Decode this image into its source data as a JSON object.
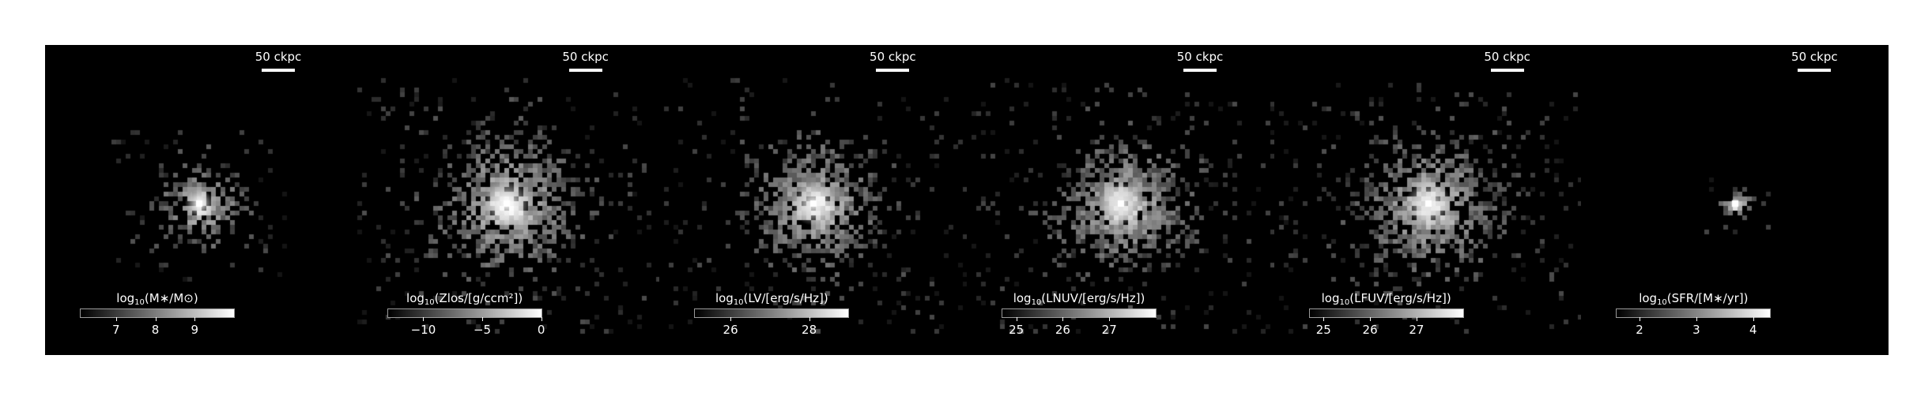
{
  "colors": {
    "figure_background": "#ffffff",
    "image_background": "#000000",
    "foreground": "#ffffff"
  },
  "panels": [
    {
      "id": "stellar-mass",
      "scalebar": "50 ckpc",
      "colorbar": {
        "label_pre": "log",
        "label_sub": "10",
        "label_post": "(M∗/M⊙)",
        "range": [
          6.1,
          10.0
        ],
        "ticks": [
          {
            "value": 7,
            "label": "7"
          },
          {
            "value": 8,
            "label": "8"
          },
          {
            "value": 9,
            "label": "9"
          }
        ]
      },
      "appearance": {
        "spread": 26,
        "extent": 110,
        "pixels": 260,
        "core": 1.0
      }
    },
    {
      "id": "metallicity",
      "scalebar": "50 ckpc",
      "colorbar": {
        "label_pre": "log",
        "label_sub": "10",
        "label_post": "(Zlos/[g/ccm²])",
        "range": [
          -13.0,
          0.0
        ],
        "ticks": [
          {
            "value": -10,
            "label": "−10"
          },
          {
            "value": -5,
            "label": "−5"
          },
          {
            "value": 0,
            "label": "0"
          }
        ]
      },
      "appearance": {
        "spread": 44,
        "extent": 190,
        "pixels": 900,
        "core": 1.0
      }
    },
    {
      "id": "v-band",
      "scalebar": "50 ckpc",
      "colorbar": {
        "label_pre": "log",
        "label_sub": "10",
        "label_post": "(LV/[erg/s/Hz])",
        "range": [
          25.1,
          29.0
        ],
        "ticks": [
          {
            "value": 26,
            "label": "26"
          },
          {
            "value": 28,
            "label": "28"
          }
        ]
      },
      "appearance": {
        "spread": 40,
        "extent": 190,
        "pixels": 820,
        "core": 0.95
      }
    },
    {
      "id": "nuv-band",
      "scalebar": "50 ckpc",
      "colorbar": {
        "label_pre": "log",
        "label_sub": "10",
        "label_post": "(LNUV/[erg/s/Hz])",
        "range": [
          24.7,
          28.0
        ],
        "ticks": [
          {
            "value": 25,
            "label": "25"
          },
          {
            "value": 26,
            "label": "26"
          },
          {
            "value": 27,
            "label": "27"
          }
        ]
      },
      "appearance": {
        "spread": 40,
        "extent": 190,
        "pixels": 900,
        "core": 0.9
      }
    },
    {
      "id": "fuv-band",
      "scalebar": "50 ckpc",
      "colorbar": {
        "label_pre": "log",
        "label_sub": "10",
        "label_post": "(LFUV/[erg/s/Hz])",
        "range": [
          24.7,
          28.0
        ],
        "ticks": [
          {
            "value": 25,
            "label": "25"
          },
          {
            "value": 26,
            "label": "26"
          },
          {
            "value": 27,
            "label": "27"
          }
        ]
      },
      "appearance": {
        "spread": 42,
        "extent": 190,
        "pixels": 950,
        "core": 0.9
      }
    },
    {
      "id": "sfr",
      "scalebar": "50 ckpc",
      "colorbar": {
        "label_pre": "log",
        "label_sub": "10",
        "label_post": "(SFR/[M∗/yr])",
        "range": [
          1.6,
          4.3
        ],
        "ticks": [
          {
            "value": 2,
            "label": "2"
          },
          {
            "value": 3,
            "label": "3"
          },
          {
            "value": 4,
            "label": "4"
          }
        ]
      },
      "appearance": {
        "spread": 10,
        "extent": 40,
        "pixels": 60,
        "core": 1.0
      }
    }
  ]
}
